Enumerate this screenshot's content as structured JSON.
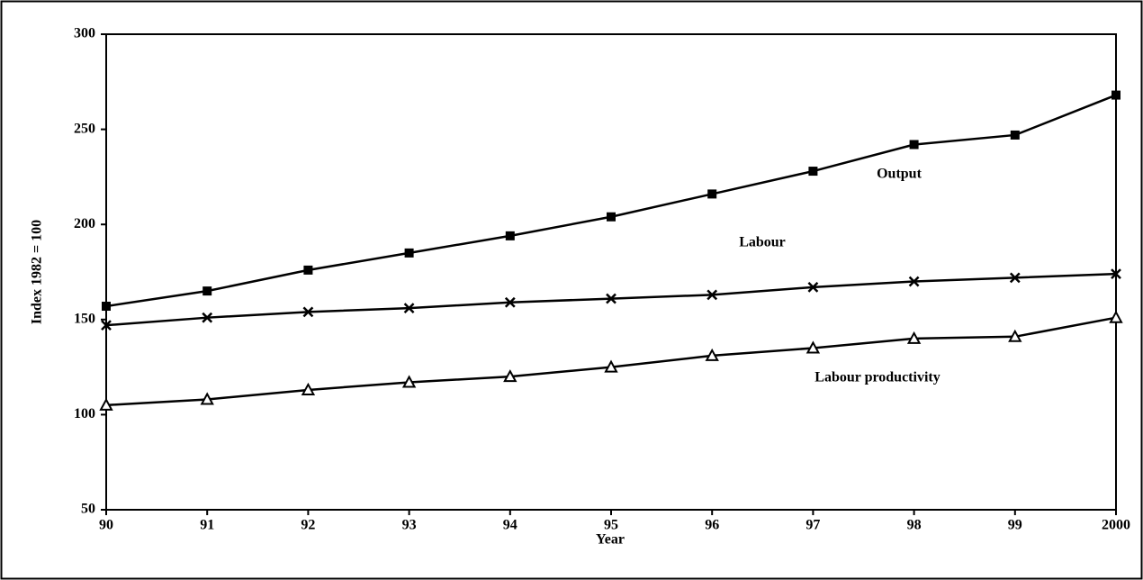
{
  "chart_data": {
    "type": "line",
    "xlabel": "Year",
    "ylabel": "Index 1982 = 100",
    "categories": [
      "90",
      "91",
      "92",
      "93",
      "94",
      "95",
      "96",
      "97",
      "98",
      "99",
      "2000"
    ],
    "series": [
      {
        "name": "Output",
        "color": "#000000",
        "marker": "square",
        "values": [
          157,
          165,
          176,
          185,
          194,
          204,
          216,
          228,
          242,
          247,
          268
        ]
      },
      {
        "name": "Labour",
        "color": "#000000",
        "marker": "cross",
        "values": [
          147,
          151,
          154,
          156,
          159,
          161,
          163,
          167,
          170,
          172,
          174
        ]
      },
      {
        "name": "Labour productivity",
        "color": "#000000",
        "marker": "triangle",
        "values": [
          105,
          108,
          113,
          117,
          120,
          125,
          131,
          135,
          140,
          141,
          151
        ]
      }
    ],
    "ylim": [
      50,
      300
    ],
    "yticks": [
      50,
      100,
      150,
      200,
      250,
      300
    ],
    "grid": false
  }
}
